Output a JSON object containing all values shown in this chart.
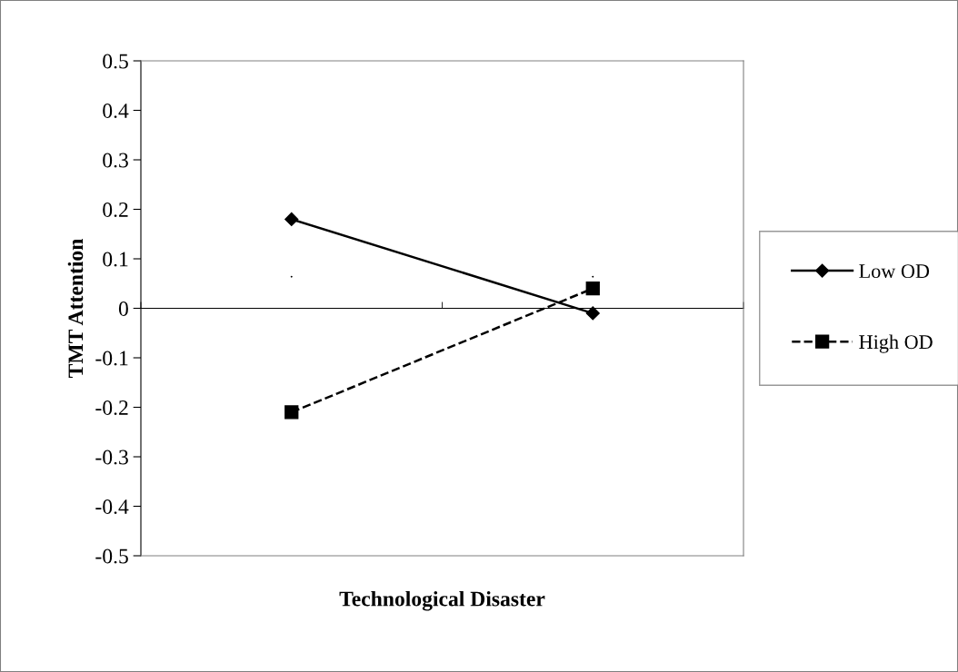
{
  "chart_data": {
    "type": "line",
    "xlabel": "Technological Disaster",
    "ylabel": "TMT Attention",
    "categories": [
      ".",
      "."
    ],
    "series": [
      {
        "name": "Low OD",
        "color": "#000000",
        "values": [
          0.18,
          -0.01
        ],
        "marker": "diamond",
        "line_style": "solid"
      },
      {
        "name": "High OD",
        "color": "#000000",
        "values": [
          -0.21,
          0.04
        ],
        "marker": "square",
        "line_style": "dashed"
      }
    ],
    "ylim": [
      -0.5,
      0.5
    ],
    "yticks": [
      {
        "value": -0.5,
        "label": "-0.5"
      },
      {
        "value": -0.4,
        "label": "-0.4"
      },
      {
        "value": -0.3,
        "label": "-0.3"
      },
      {
        "value": -0.2,
        "label": "-0.2"
      },
      {
        "value": -0.1,
        "label": "-0.1"
      },
      0,
      0.1,
      0.2,
      0.3,
      0.4,
      0.5
    ],
    "grid": false,
    "legend": "right"
  }
}
